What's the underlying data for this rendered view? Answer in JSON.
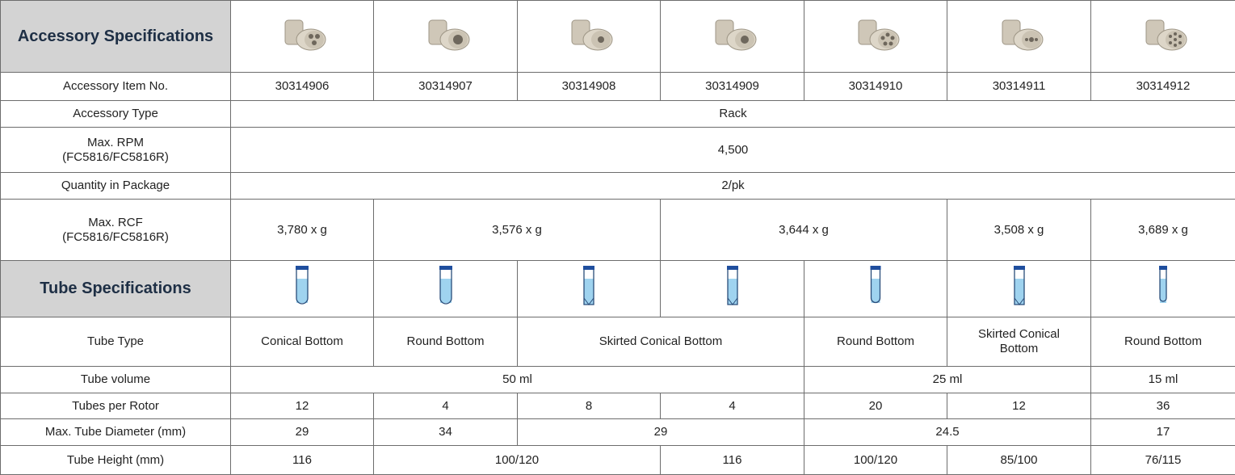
{
  "table": {
    "rows": [
      [
        "Accessory Specifications"
      ],
      [
        "Accessory Item No.",
        "30314906",
        "30314907",
        "30314908",
        "30314909",
        "30314910",
        "30314911",
        "30314912"
      ],
      [
        "Accessory Type",
        "Rack"
      ],
      [
        "Max. RPM\n(FC5816/FC5816R)",
        "4,500"
      ],
      [
        "Quantity in Package",
        "2/pk"
      ],
      [
        "Max. RCF\n(FC5816/FC5816R)",
        "3,780 x g",
        "3,576 x g",
        "3,644 x g",
        "3,508 x g",
        "3,689 x g"
      ],
      [
        "Tube Specifications"
      ],
      [
        "Tube Type",
        "Conical Bottom",
        "Round Bottom",
        "Skirted Conical Bottom",
        "Round Bottom",
        "Skirted Conical\nBottom",
        "Round Bottom"
      ],
      [
        "Tube volume",
        "50 ml",
        "25 ml",
        "15 ml"
      ],
      [
        "Tubes per Rotor",
        "12",
        "4",
        "8",
        "4",
        "20",
        "12",
        "36"
      ],
      [
        "Max. Tube Diameter (mm)",
        "29",
        "34",
        "29",
        "24.5",
        "17"
      ],
      [
        "Tube Height (mm)",
        "116",
        "100/120",
        "116",
        "100/120",
        "85/100",
        "76/115"
      ]
    ]
  }
}
